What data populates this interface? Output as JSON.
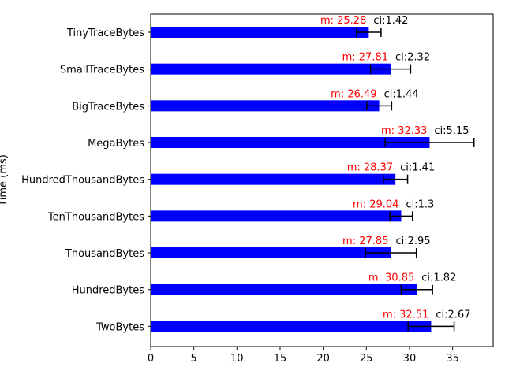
{
  "chart_data": {
    "type": "bar",
    "orientation": "horizontal",
    "categories": [
      "TinyTraceBytes",
      "SmallTraceBytes",
      "BigTraceBytes",
      "MegaBytes",
      "HundredThousandBytes",
      "TenThousandBytes",
      "ThousandBytes",
      "HundredBytes",
      "TwoBytes"
    ],
    "series": [
      {
        "values": [
          25.28,
          27.81,
          26.49,
          32.33,
          28.37,
          29.04,
          27.85,
          30.85,
          32.51
        ],
        "ci": [
          1.42,
          2.32,
          1.44,
          5.15,
          1.41,
          1.3,
          2.95,
          1.82,
          2.67
        ],
        "color": "#0000ff"
      }
    ],
    "mean_labels": [
      "m: 25.28",
      "m: 27.81",
      "m: 26.49",
      "m: 32.33",
      "m: 28.37",
      "m: 29.04",
      "m: 27.85",
      "m: 30.85",
      "m: 32.51"
    ],
    "ci_labels": [
      "ci:1.42",
      "ci:2.32",
      "ci:1.44",
      "ci:5.15",
      "ci:1.41",
      "ci:1.3",
      "ci:2.95",
      "ci:1.82",
      "ci:2.67"
    ],
    "mean_label_color": "#ff0000",
    "ylabel": "Time (ms)",
    "xlabel": "",
    "xlim": [
      0,
      39.7
    ],
    "xticks": [
      0,
      5,
      10,
      15,
      20,
      25,
      30,
      35
    ],
    "grid": false,
    "legend": "none"
  }
}
